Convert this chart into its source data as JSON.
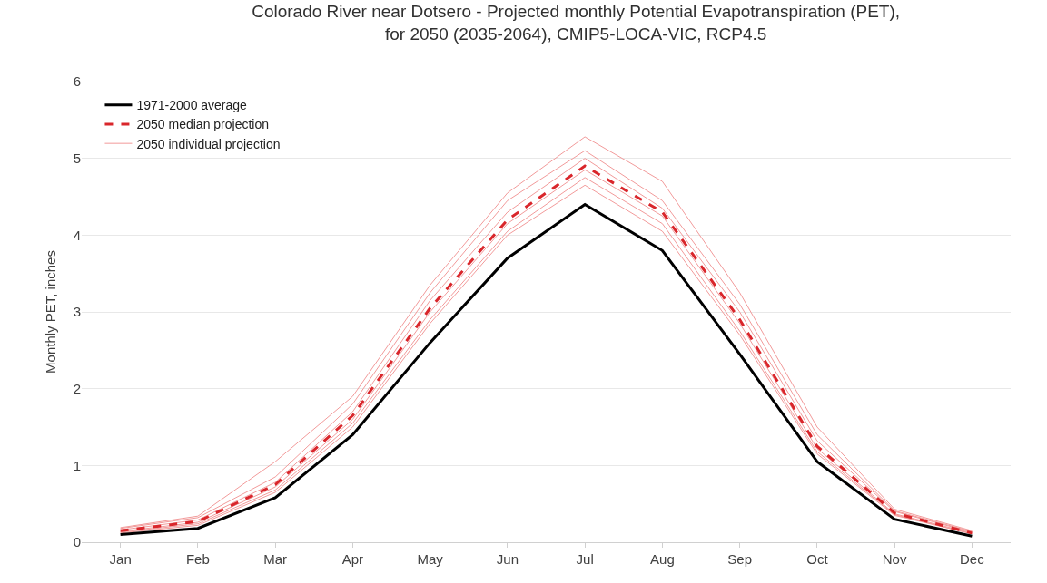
{
  "chart_data": {
    "type": "line",
    "title": "Colorado River near Dotsero - Projected monthly Potential Evapotranspiration (PET),\nfor 2050 (2035-2064), CMIP5-LOCA-VIC, RCP4.5",
    "ylabel": "Monthly PET, inches",
    "categories": [
      "Jan",
      "Feb",
      "Mar",
      "Apr",
      "May",
      "Jun",
      "Jul",
      "Aug",
      "Sep",
      "Oct",
      "Nov",
      "Dec"
    ],
    "ylim": [
      0,
      6
    ],
    "yticks": [
      0,
      1,
      2,
      3,
      4,
      5,
      6
    ],
    "grid": "y",
    "legend": "top left",
    "marker": "none",
    "series": [
      {
        "name": "1971-2000 average",
        "color": "#000000",
        "line_style": "solid",
        "values": [
          0.1,
          0.18,
          0.58,
          1.4,
          2.6,
          3.7,
          4.4,
          3.8,
          2.45,
          1.05,
          0.3,
          0.08
        ]
      },
      {
        "name": "2050 median projection",
        "color": "#d9262b",
        "line_style": "dashed",
        "values": [
          0.15,
          0.27,
          0.75,
          1.65,
          3.05,
          4.2,
          4.9,
          4.3,
          2.9,
          1.25,
          0.38,
          0.12
        ]
      },
      {
        "name": "2050 individual projection",
        "color": "#f29a9a",
        "line_style": "solid",
        "values": [
          0.19,
          0.34,
          1.05,
          1.9,
          3.35,
          4.55,
          5.28,
          4.7,
          3.25,
          1.5,
          0.43,
          0.15
        ]
      },
      {
        "color": "#f29a9a",
        "line_style": "solid",
        "values": [
          0.18,
          0.32,
          0.85,
          1.8,
          3.25,
          4.45,
          5.1,
          4.45,
          3.1,
          1.4,
          0.41,
          0.14
        ]
      },
      {
        "color": "#f29a9a",
        "line_style": "solid",
        "values": [
          0.16,
          0.29,
          0.78,
          1.7,
          3.15,
          4.3,
          5.0,
          4.35,
          3.0,
          1.32,
          0.4,
          0.13
        ]
      },
      {
        "color": "#f29a9a",
        "line_style": "solid",
        "values": [
          0.14,
          0.26,
          0.72,
          1.6,
          3.0,
          4.15,
          4.85,
          4.25,
          2.85,
          1.22,
          0.37,
          0.12
        ]
      },
      {
        "color": "#f29a9a",
        "line_style": "solid",
        "values": [
          0.13,
          0.24,
          0.68,
          1.55,
          2.9,
          4.05,
          4.75,
          4.15,
          2.75,
          1.18,
          0.36,
          0.11
        ]
      },
      {
        "color": "#f29a9a",
        "line_style": "solid",
        "values": [
          0.12,
          0.22,
          0.65,
          1.5,
          2.85,
          4.0,
          4.65,
          4.05,
          2.7,
          1.15,
          0.35,
          0.11
        ]
      }
    ]
  }
}
